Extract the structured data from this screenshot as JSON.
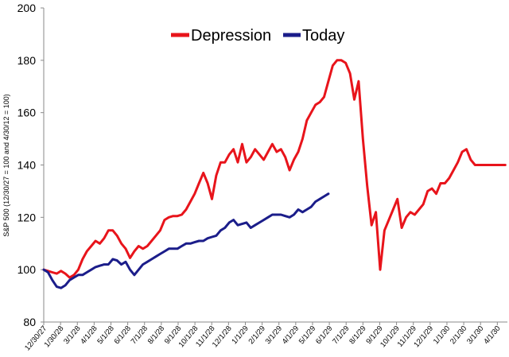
{
  "chart_data": {
    "type": "line",
    "title": "",
    "xlabel": "",
    "ylabel": "S&P 500 (12/30/27 = 100 and 4/30/12 = 100)",
    "ylim": [
      80,
      200
    ],
    "yticks": [
      "80",
      "100",
      "120",
      "140",
      "160",
      "180",
      "200"
    ],
    "x_tick_labels": [
      "12/30/27",
      "1/30/28",
      "3/1/28",
      "4/1/28",
      "5/1/28",
      "6/1/28",
      "7/1/28",
      "8/1/28",
      "9/1/28",
      "10/1/28",
      "11/1/28",
      "12/1/28",
      "1/1/29",
      "2/1/29",
      "3/1/29",
      "4/1/29",
      "5/1/29",
      "6/1/29",
      "7/1/29",
      "8/1/29",
      "9/1/29",
      "10/1/29",
      "11/1/29",
      "12/1/29",
      "1/1/30",
      "2/1/30",
      "3/1/30",
      "4/1/30"
    ],
    "x_range_days": [
      0,
      860
    ],
    "legend": "top-center",
    "grid": false,
    "series": [
      {
        "name": "Depression",
        "color": "#e8141b",
        "x": [
          0,
          8,
          16,
          24,
          32,
          40,
          48,
          56,
          64,
          72,
          80,
          88,
          96,
          104,
          112,
          120,
          128,
          136,
          144,
          152,
          160,
          168,
          176,
          184,
          192,
          200,
          208,
          216,
          224,
          232,
          240,
          248,
          256,
          264,
          272,
          280,
          288,
          296,
          304,
          312,
          320,
          328,
          336,
          344,
          352,
          360,
          368,
          376,
          384,
          392,
          400,
          408,
          416,
          424,
          432,
          440,
          448,
          456,
          464,
          472,
          480,
          488,
          496,
          504,
          512,
          520,
          528,
          536,
          544,
          552,
          560,
          568,
          576,
          584,
          592,
          600,
          608,
          616,
          624,
          632,
          640,
          648,
          656,
          664,
          672,
          680,
          688,
          696,
          704,
          712,
          720,
          728,
          736,
          744,
          752,
          760,
          768,
          776,
          784,
          792,
          800,
          808,
          816,
          824,
          832,
          840,
          848,
          856
        ],
        "y": [
          100,
          99.5,
          99,
          98.5,
          99.5,
          98.5,
          97,
          98,
          100,
          104,
          107,
          109,
          111,
          110,
          112,
          115,
          115,
          113,
          110,
          108,
          104.5,
          107,
          109,
          108,
          109,
          111,
          113,
          115,
          119,
          120,
          120.5,
          120.5,
          121,
          123,
          126,
          129,
          133,
          137,
          133,
          127,
          136,
          141,
          141,
          144,
          146,
          141,
          148,
          141,
          143,
          146,
          144,
          142,
          145,
          148,
          145,
          146,
          143,
          138,
          142,
          145,
          150,
          157,
          160,
          163,
          164,
          166,
          172,
          178,
          180,
          180,
          179,
          175,
          165,
          172,
          150,
          132,
          117,
          122,
          100,
          115,
          119,
          123,
          127,
          116,
          120,
          122,
          121,
          123,
          125,
          130,
          131,
          129,
          133,
          133,
          135,
          138,
          141,
          145,
          146,
          142,
          140,
          140,
          140,
          140,
          140,
          140,
          140,
          140
        ]
      },
      {
        "name": "Today",
        "color": "#1b1d8a",
        "x": [
          0,
          8,
          16,
          24,
          32,
          40,
          48,
          56,
          64,
          72,
          80,
          88,
          96,
          104,
          112,
          120,
          128,
          136,
          144,
          152,
          160,
          168,
          176,
          184,
          192,
          200,
          208,
          216,
          224,
          232,
          240,
          248,
          256,
          264,
          272,
          280,
          288,
          296,
          304,
          312,
          320,
          328,
          336,
          344,
          352,
          360,
          368,
          376,
          384,
          392,
          400,
          408,
          416,
          424,
          432,
          440,
          448,
          456,
          464,
          472,
          480,
          488,
          496,
          504,
          512,
          520,
          528
        ],
        "y": [
          100,
          99,
          96,
          93.5,
          93,
          94,
          96,
          97,
          98,
          98,
          99,
          100,
          101,
          101.5,
          102,
          102,
          104,
          103.5,
          102,
          103,
          100,
          98,
          100,
          102,
          103,
          104,
          105,
          106,
          107,
          108,
          108,
          108,
          109,
          110,
          110,
          110.5,
          111,
          111,
          112,
          112.5,
          113,
          115,
          116,
          118,
          119,
          117,
          117.5,
          118,
          116,
          117,
          118,
          119,
          120,
          121,
          121,
          121,
          120.5,
          120,
          121,
          123,
          122,
          123,
          124,
          126,
          127,
          128,
          129
        ]
      }
    ]
  }
}
